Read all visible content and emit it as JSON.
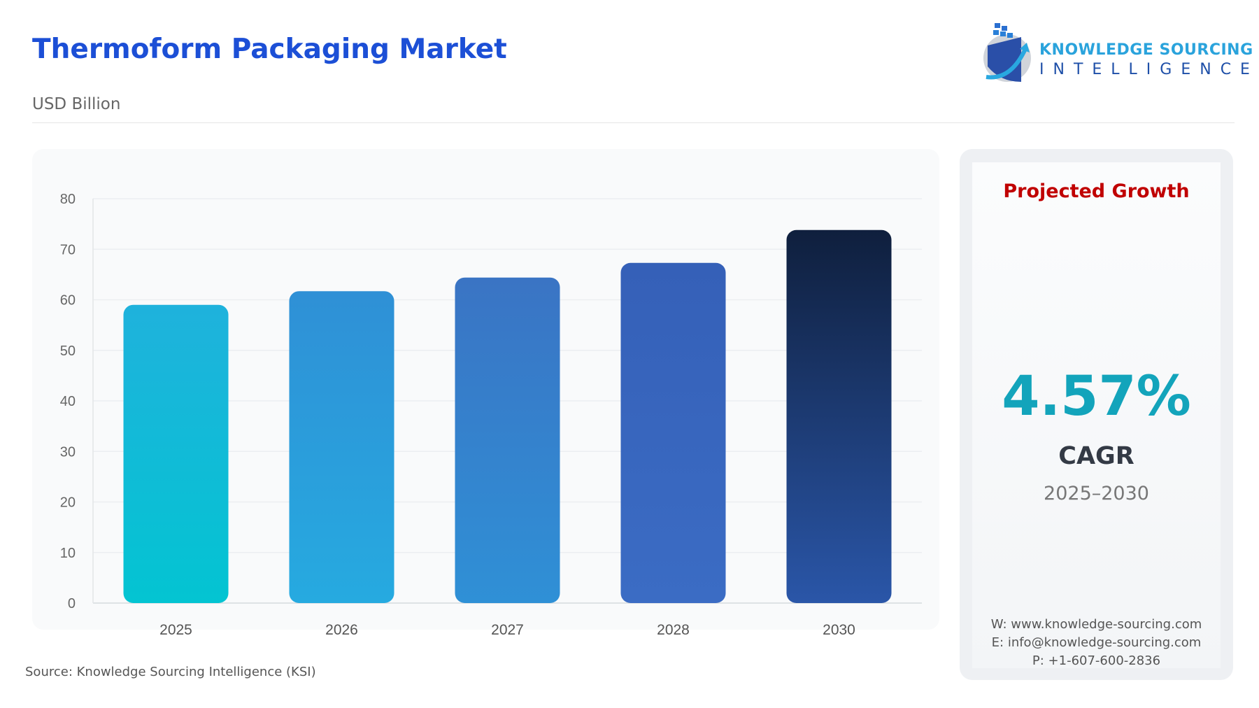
{
  "header": {
    "title": "Thermoform Packaging Market",
    "subtitle": "USD Billion"
  },
  "logo": {
    "line1": "KNOWLEDGE SOURCING",
    "line2": "INTELLIGENCE"
  },
  "panel": {
    "heading": "Projected Growth",
    "value": "4.57%",
    "label": "CAGR",
    "period": "2025–2030",
    "contact": [
      "W: www.knowledge-sourcing.com",
      "E: info@knowledge-sourcing.com",
      "P: +1-607-600-2836"
    ]
  },
  "source": "Source: Knowledge Sourcing Intelligence (KSI)",
  "chart_data": {
    "type": "bar",
    "title": "",
    "xlabel": "",
    "ylabel": "",
    "categories": [
      "2025",
      "2026",
      "2027",
      "2028",
      "2030"
    ],
    "values": [
      59.0,
      61.7,
      64.4,
      67.3,
      73.8
    ],
    "ylim": [
      0,
      80
    ],
    "yticks": [
      0,
      10,
      20,
      30,
      40,
      50,
      60,
      70,
      80
    ],
    "grid": true,
    "colors": [
      [
        "#1fb2dc",
        "#03c4d2"
      ],
      [
        "#2f90d6",
        "#26aae0"
      ],
      [
        "#3a74c4",
        "#2f90d6"
      ],
      [
        "#3560b8",
        "#3b6cc4"
      ],
      [
        "#0f1f3d",
        "#2a56a8"
      ]
    ]
  }
}
